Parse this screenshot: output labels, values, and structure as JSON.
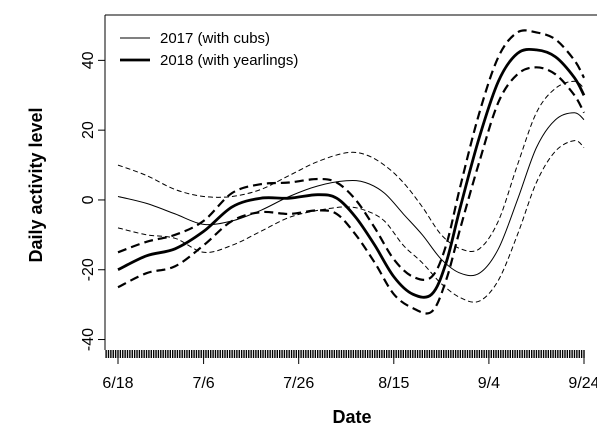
{
  "chart_data": {
    "type": "line",
    "title": "",
    "xlabel": "Date",
    "ylabel": "Daily activity level",
    "x_tick_labels": [
      "6/18",
      "7/6",
      "7/26",
      "8/15",
      "9/4",
      "9/24"
    ],
    "x_tick_days": [
      0,
      18,
      38,
      58,
      78,
      98
    ],
    "xlim_days": [
      -3,
      98
    ],
    "ylim": [
      -43,
      53
    ],
    "y_ticks": [
      -40,
      -20,
      0,
      20,
      40
    ],
    "grid": false,
    "legend_position": "top-left",
    "rug": true,
    "series": [
      {
        "name": "2017 (with cubs)",
        "style": "thin",
        "x_days": [
          0,
          6,
          12,
          18,
          24,
          30,
          36,
          42,
          48,
          52,
          56,
          60,
          64,
          68,
          72,
          76,
          80,
          84,
          88,
          92,
          96,
          98
        ],
        "y": [
          1,
          -1,
          -4,
          -7,
          -6,
          -3,
          1,
          4,
          5.5,
          5,
          2,
          -4,
          -10,
          -17,
          -21,
          -21,
          -14,
          0,
          15,
          23,
          25,
          23
        ],
        "upper": [
          10,
          7,
          3,
          1,
          1,
          3,
          7,
          11,
          13.5,
          13,
          10,
          5,
          -2,
          -10,
          -14,
          -14,
          -6,
          10,
          25,
          32,
          34,
          32
        ],
        "lower": [
          -8,
          -10,
          -11,
          -15,
          -13,
          -9,
          -5,
          -3,
          -2,
          -3,
          -6,
          -13,
          -18,
          -24,
          -28,
          -29,
          -23,
          -10,
          5,
          14,
          17,
          15
        ]
      },
      {
        "name": "2018 (with yearlings)",
        "style": "thick",
        "x_days": [
          0,
          6,
          12,
          18,
          24,
          30,
          36,
          42,
          46,
          50,
          54,
          58,
          62,
          66,
          69,
          72,
          76,
          80,
          84,
          88,
          92,
          96,
          98
        ],
        "y": [
          -20,
          -16,
          -14,
          -9,
          -2,
          0.5,
          0.5,
          1.5,
          0.5,
          -5,
          -13,
          -22,
          -27,
          -27,
          -18,
          -2,
          18,
          34,
          42,
          43,
          41,
          35,
          30
        ],
        "upper": [
          -15,
          -12,
          -10,
          -6,
          2,
          4.5,
          5,
          6,
          5,
          0,
          -8,
          -17,
          -22,
          -22,
          -13,
          4,
          25,
          41,
          48,
          48,
          46,
          40,
          35
        ],
        "lower": [
          -25,
          -21,
          -19,
          -13,
          -6,
          -3.5,
          -4,
          -3,
          -4,
          -10,
          -18,
          -27,
          -31,
          -32,
          -23,
          -8,
          11,
          28,
          36,
          38,
          36,
          30,
          25
        ]
      }
    ]
  }
}
